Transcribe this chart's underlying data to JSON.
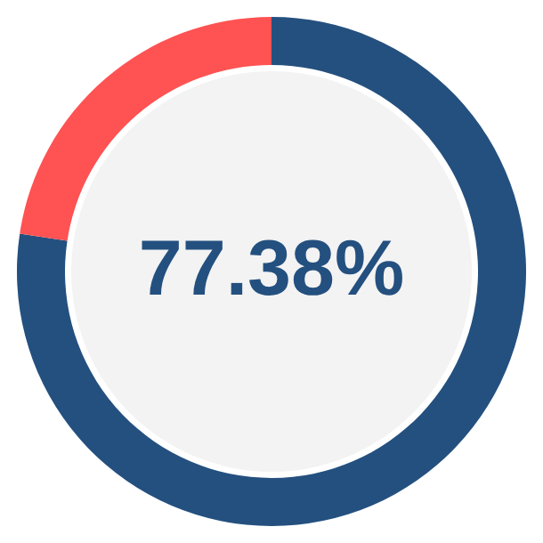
{
  "chart_data": {
    "type": "donut",
    "categories": [
      null,
      null
    ],
    "values": [
      77.38,
      22.62
    ],
    "colors": [
      "#24507f",
      "#ff5252"
    ],
    "value_labels": [
      "77.38%",
      null
    ]
  }
}
